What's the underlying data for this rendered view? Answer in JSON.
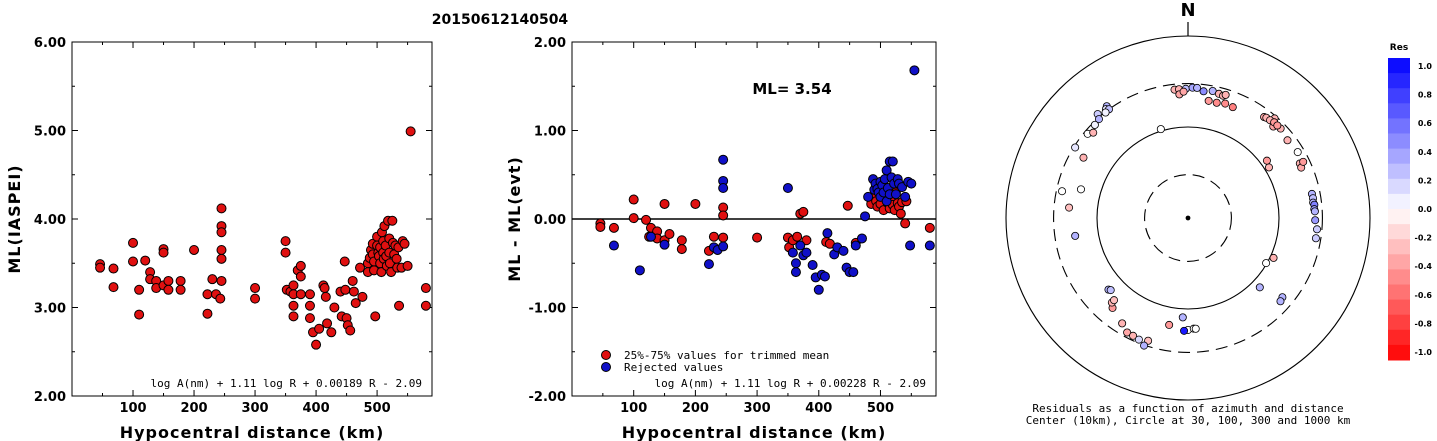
{
  "title": "20150612140504",
  "colors": {
    "used": "#e01010",
    "rejected": "#1010c8",
    "outline": "#000000"
  },
  "chart_data": [
    {
      "type": "scatter",
      "id": "ml-vs-distance",
      "xlabel": "Hypocentral distance (km)",
      "ylabel": "ML(IASPEI)",
      "xlim": [
        0,
        590
      ],
      "ylim": [
        2.0,
        6.0
      ],
      "xticks": [
        "100",
        "200",
        "300",
        "400",
        "500"
      ],
      "xtick_values": [
        100,
        200,
        300,
        400,
        500
      ],
      "yticks": [
        "2.00",
        "3.00",
        "4.00",
        "5.00",
        "6.00"
      ],
      "ytick_values": [
        2,
        3,
        4,
        5,
        6
      ],
      "formula": "log A(nm) + 1.11 log R + 0.00189 R - 2.09",
      "points": [
        [
          46,
          3.49
        ],
        [
          46,
          3.45
        ],
        [
          68,
          3.44
        ],
        [
          68,
          3.23
        ],
        [
          100,
          3.73
        ],
        [
          100,
          3.52
        ],
        [
          110,
          2.92
        ],
        [
          110,
          3.2
        ],
        [
          120,
          3.53
        ],
        [
          128,
          3.4
        ],
        [
          128,
          3.32
        ],
        [
          138,
          3.3
        ],
        [
          138,
          3.22
        ],
        [
          150,
          3.66
        ],
        [
          150,
          3.62
        ],
        [
          150,
          3.25
        ],
        [
          158,
          3.3
        ],
        [
          158,
          3.2
        ],
        [
          178,
          3.3
        ],
        [
          178,
          3.2
        ],
        [
          200,
          3.65
        ],
        [
          222,
          2.93
        ],
        [
          222,
          3.15
        ],
        [
          230,
          3.32
        ],
        [
          236,
          3.15
        ],
        [
          243,
          3.1
        ],
        [
          245,
          4.12
        ],
        [
          245,
          3.92
        ],
        [
          245,
          3.85
        ],
        [
          245,
          3.65
        ],
        [
          245,
          3.55
        ],
        [
          245,
          3.3
        ],
        [
          300,
          3.22
        ],
        [
          300,
          3.1
        ],
        [
          350,
          3.75
        ],
        [
          350,
          3.62
        ],
        [
          352,
          3.2
        ],
        [
          358,
          3.18
        ],
        [
          363,
          3.25
        ],
        [
          363,
          3.15
        ],
        [
          363,
          3.02
        ],
        [
          363,
          2.9
        ],
        [
          370,
          3.42
        ],
        [
          375,
          3.47
        ],
        [
          375,
          3.35
        ],
        [
          375,
          3.15
        ],
        [
          390,
          3.15
        ],
        [
          390,
          3.02
        ],
        [
          390,
          2.88
        ],
        [
          395,
          2.72
        ],
        [
          400,
          2.58
        ],
        [
          405,
          2.76
        ],
        [
          412,
          3.25
        ],
        [
          414,
          3.22
        ],
        [
          416,
          3.12
        ],
        [
          418,
          2.82
        ],
        [
          425,
          2.72
        ],
        [
          430,
          3.0
        ],
        [
          440,
          3.18
        ],
        [
          442,
          2.9
        ],
        [
          447,
          3.52
        ],
        [
          448,
          3.2
        ],
        [
          450,
          2.88
        ],
        [
          452,
          2.8
        ],
        [
          456,
          2.74
        ],
        [
          460,
          3.3
        ],
        [
          462,
          3.18
        ],
        [
          465,
          3.05
        ],
        [
          472,
          3.45
        ],
        [
          476,
          3.12
        ],
        [
          485,
          3.5
        ],
        [
          485,
          3.4
        ],
        [
          488,
          3.56
        ],
        [
          490,
          3.65
        ],
        [
          493,
          3.72
        ],
        [
          493,
          3.6
        ],
        [
          495,
          3.52
        ],
        [
          495,
          3.42
        ],
        [
          497,
          2.9
        ],
        [
          500,
          3.8
        ],
        [
          500,
          3.7
        ],
        [
          502,
          3.62
        ],
        [
          503,
          3.58
        ],
        [
          505,
          3.68
        ],
        [
          505,
          3.5
        ],
        [
          507,
          3.4
        ],
        [
          508,
          3.85
        ],
        [
          510,
          3.75
        ],
        [
          510,
          3.62
        ],
        [
          511,
          3.55
        ],
        [
          512,
          3.92
        ],
        [
          514,
          3.7
        ],
        [
          515,
          3.58
        ],
        [
          516,
          3.47
        ],
        [
          518,
          3.98
        ],
        [
          520,
          3.78
        ],
        [
          520,
          3.62
        ],
        [
          521,
          3.5
        ],
        [
          523,
          3.4
        ],
        [
          525,
          3.98
        ],
        [
          526,
          3.73
        ],
        [
          528,
          3.6
        ],
        [
          530,
          3.7
        ],
        [
          532,
          3.55
        ],
        [
          533,
          3.45
        ],
        [
          535,
          3.68
        ],
        [
          536,
          3.02
        ],
        [
          540,
          3.45
        ],
        [
          542,
          3.75
        ],
        [
          545,
          3.72
        ],
        [
          550,
          3.47
        ],
        [
          555,
          4.99
        ],
        [
          580,
          3.22
        ],
        [
          580,
          3.02
        ]
      ]
    },
    {
      "type": "scatter",
      "id": "residual-vs-distance",
      "xlabel": "Hypocentral distance (km)",
      "ylabel": "ML - ML(evt)",
      "xlim": [
        0,
        590
      ],
      "ylim": [
        -2.0,
        2.0
      ],
      "xticks": [
        "100",
        "200",
        "300",
        "400",
        "500"
      ],
      "xtick_values": [
        100,
        200,
        300,
        400,
        500
      ],
      "yticks": [
        "-2.00",
        "-1.00",
        "0.00",
        "1.00",
        "2.00"
      ],
      "ytick_values": [
        -2,
        -1,
        0,
        1,
        2
      ],
      "annotation": "ML= 3.54",
      "legend": [
        "25%-75% values for trimmed mean",
        "Rejected values"
      ],
      "formula": "log A(nm) + 1.11 log R + 0.00228 R - 2.09",
      "used": [
        [
          46,
          -0.05
        ],
        [
          46,
          -0.09
        ],
        [
          68,
          -0.1
        ],
        [
          100,
          0.22
        ],
        [
          100,
          0.01
        ],
        [
          120,
          -0.01
        ],
        [
          125,
          -0.2
        ],
        [
          128,
          -0.1
        ],
        [
          138,
          -0.14
        ],
        [
          138,
          -0.22
        ],
        [
          150,
          0.17
        ],
        [
          150,
          -0.24
        ],
        [
          158,
          -0.17
        ],
        [
          178,
          -0.24
        ],
        [
          178,
          -0.34
        ],
        [
          200,
          0.17
        ],
        [
          222,
          -0.36
        ],
        [
          230,
          -0.2
        ],
        [
          245,
          0.13
        ],
        [
          245,
          0.04
        ],
        [
          245,
          -0.21
        ],
        [
          300,
          -0.21
        ],
        [
          350,
          -0.21
        ],
        [
          352,
          -0.32
        ],
        [
          358,
          -0.24
        ],
        [
          365,
          -0.2
        ],
        [
          370,
          0.06
        ],
        [
          375,
          0.08
        ],
        [
          380,
          -0.24
        ],
        [
          412,
          -0.26
        ],
        [
          418,
          -0.28
        ],
        [
          447,
          0.15
        ],
        [
          460,
          -0.27
        ],
        [
          485,
          0.17
        ],
        [
          490,
          0.25
        ],
        [
          493,
          0.2
        ],
        [
          495,
          0.14
        ],
        [
          500,
          0.17
        ],
        [
          502,
          0.26
        ],
        [
          505,
          0.1
        ],
        [
          508,
          0.3
        ],
        [
          510,
          0.28
        ],
        [
          512,
          0.18
        ],
        [
          515,
          0.12
        ],
        [
          518,
          0.22
        ],
        [
          520,
          0.16
        ],
        [
          523,
          0.1
        ],
        [
          525,
          0.3
        ],
        [
          528,
          0.18
        ],
        [
          530,
          0.14
        ],
        [
          533,
          0.06
        ],
        [
          535,
          0.19
        ],
        [
          540,
          -0.05
        ],
        [
          542,
          0.2
        ],
        [
          580,
          -0.1
        ]
      ],
      "rejected": [
        [
          68,
          -0.3
        ],
        [
          110,
          -0.58
        ],
        [
          128,
          -0.2
        ],
        [
          150,
          -0.29
        ],
        [
          222,
          -0.51
        ],
        [
          230,
          -0.32
        ],
        [
          236,
          -0.35
        ],
        [
          245,
          0.67
        ],
        [
          245,
          0.43
        ],
        [
          245,
          0.35
        ],
        [
          245,
          -0.31
        ],
        [
          350,
          0.35
        ],
        [
          358,
          -0.38
        ],
        [
          363,
          -0.5
        ],
        [
          363,
          -0.6
        ],
        [
          370,
          -0.3
        ],
        [
          375,
          -0.41
        ],
        [
          380,
          -0.38
        ],
        [
          390,
          -0.52
        ],
        [
          395,
          -0.66
        ],
        [
          400,
          -0.8
        ],
        [
          405,
          -0.63
        ],
        [
          410,
          -0.65
        ],
        [
          414,
          -0.16
        ],
        [
          425,
          -0.4
        ],
        [
          430,
          -0.32
        ],
        [
          440,
          -0.36
        ],
        [
          445,
          -0.55
        ],
        [
          450,
          -0.6
        ],
        [
          456,
          -0.6
        ],
        [
          460,
          -0.3
        ],
        [
          470,
          -0.22
        ],
        [
          475,
          0.03
        ],
        [
          480,
          0.25
        ],
        [
          488,
          0.45
        ],
        [
          490,
          0.33
        ],
        [
          492,
          0.4
        ],
        [
          495,
          0.34
        ],
        [
          497,
          0.3
        ],
        [
          500,
          0.42
        ],
        [
          500,
          0.25
        ],
        [
          503,
          0.38
        ],
        [
          505,
          0.3
        ],
        [
          507,
          0.45
        ],
        [
          510,
          0.55
        ],
        [
          510,
          0.2
        ],
        [
          512,
          0.35
        ],
        [
          515,
          0.65
        ],
        [
          515,
          0.28
        ],
        [
          518,
          0.47
        ],
        [
          520,
          0.65
        ],
        [
          522,
          0.4
        ],
        [
          525,
          0.28
        ],
        [
          528,
          0.45
        ],
        [
          530,
          0.4
        ],
        [
          535,
          0.36
        ],
        [
          540,
          0.25
        ],
        [
          545,
          0.42
        ],
        [
          548,
          -0.3
        ],
        [
          550,
          0.4
        ],
        [
          555,
          1.68
        ],
        [
          580,
          -0.3
        ]
      ]
    },
    {
      "type": "scatter",
      "id": "residual-polar",
      "north_label": "N",
      "caption": [
        "Residuals as a function of azimuth and distance",
        "Center (10km), Circle at 30, 100, 300 and 1000 km"
      ],
      "rings_km": [
        30,
        100,
        300,
        1000
      ],
      "colorbar_title": "Res",
      "colorbar_labels": [
        "1.0",
        "0.8",
        "0.6",
        "0.4",
        "0.2",
        "0.0",
        "-0.2",
        "-0.4",
        "-0.6",
        "-0.8",
        "-1.0"
      ],
      "stations_az_dist_res": [
        [
          324,
          330,
          0.3
        ],
        [
          319,
          326,
          0.2
        ],
        [
          323,
          315,
          0.1
        ],
        [
          324,
          300,
          0.25
        ],
        [
          322,
          296,
          0.05
        ],
        [
          318,
          290,
          0.3
        ],
        [
          315,
          280,
          0.05
        ],
        [
          310,
          275,
          0.0
        ],
        [
          302,
          290,
          0.1
        ],
        [
          312,
          252,
          -0.3
        ],
        [
          300,
          212,
          -0.3
        ],
        [
          285,
          165,
          0.0
        ],
        [
          275,
          205,
          -0.25
        ],
        [
          261,
          180,
          0.3
        ],
        [
          282,
          260,
          0.0
        ],
        [
          228,
          150,
          0.3
        ],
        [
          227,
          145,
          0.25
        ],
        [
          220,
          195,
          -0.4
        ],
        [
          222,
          178,
          -0.3
        ],
        [
          222,
          164,
          -0.25
        ],
        [
          212,
          232,
          -0.3
        ],
        [
          208,
          266,
          -0.35
        ],
        [
          205,
          268,
          -0.3
        ],
        [
          202,
          276,
          0.15
        ],
        [
          198,
          262,
          -0.25
        ],
        [
          199,
          304,
          0.3
        ],
        [
          183,
          124,
          0.3
        ],
        [
          180,
          170,
          0.0
        ],
        [
          177,
          165,
          0.0
        ],
        [
          176,
          166,
          0.0
        ],
        [
          182,
          174,
          0.9
        ],
        [
          190,
          156,
          -0.4
        ],
        [
          343,
          105,
          0.0
        ],
        [
          58,
          112,
          -0.3
        ],
        [
          54,
          118,
          -0.4
        ],
        [
          120,
          98,
          0.0
        ],
        [
          115,
          109,
          -0.3
        ],
        [
          134,
          125,
          0.3
        ],
        [
          10,
          203,
          -0.4
        ],
        [
          14,
          202,
          -0.45
        ],
        [
          18,
          210,
          -0.45
        ],
        [
          22,
          206,
          -0.5
        ],
        [
          41,
          282,
          -0.3
        ],
        [
          43,
          237,
          -0.35
        ],
        [
          46,
          260,
          -0.3
        ],
        [
          52,
          244,
          -0.3
        ],
        [
          64,
          233,
          -0.3
        ],
        [
          66,
          230,
          -0.35
        ],
        [
          79,
          244,
          0.3
        ],
        [
          81,
          246,
          0.25
        ],
        [
          83,
          243,
          0.3
        ],
        [
          84,
          249,
          0.5
        ],
        [
          86,
          246,
          0.4
        ],
        [
          87,
          249,
          0.3
        ],
        [
          91,
          250,
          0.4
        ],
        [
          95,
          265,
          0.2
        ],
        [
          99,
          265,
          0.2
        ],
        [
          130,
          226,
          0.3
        ],
        [
          132,
          233,
          0.3
        ],
        [
          354,
          262,
          -0.3
        ],
        [
          356,
          262,
          -0.3
        ],
        [
          359,
          263,
          0.25
        ],
        [
          2,
          271,
          0.35
        ],
        [
          4,
          271,
          0.3
        ],
        [
          7,
          253,
          0.45
        ],
        [
          356,
          230,
          -0.35
        ],
        [
          358,
          245,
          -0.35
        ],
        [
          11,
          264,
          0.3
        ],
        [
          14,
          255,
          -0.3
        ],
        [
          16,
          250,
          -0.3
        ],
        [
          17,
          260,
          -0.3
        ],
        [
          37,
          245,
          -0.35
        ],
        [
          38,
          250,
          -0.3
        ],
        [
          40,
          253,
          -0.3
        ],
        [
          42,
          260,
          -0.4
        ],
        [
          44,
          259,
          -0.4
        ],
        [
          59,
          255,
          0.0
        ],
        [
          64,
          256,
          -0.4
        ]
      ]
    }
  ]
}
